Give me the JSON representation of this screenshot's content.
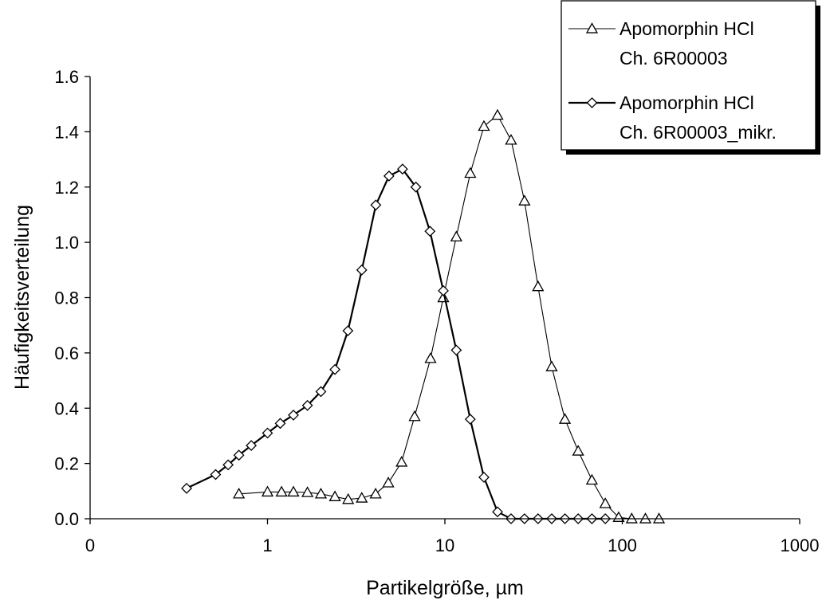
{
  "colors": {
    "series_line": "#000000",
    "marker_fill": "#ffffff",
    "axis": "#000000",
    "legend_shadow": "#000000"
  },
  "chart_data": {
    "type": "line",
    "title": "",
    "xlabel": "Partikelgröße, µm",
    "ylabel": "Häufigkeitsverteilung",
    "x_scale": "log",
    "xlim": [
      0.1,
      1000
    ],
    "ylim": [
      0,
      1.6
    ],
    "x_ticks": [
      0.1,
      1,
      10,
      100,
      1000
    ],
    "x_tick_labels": [
      "0",
      "1",
      "10",
      "100",
      "1000"
    ],
    "y_ticks": [
      0,
      0.2,
      0.4,
      0.6,
      0.8,
      1.0,
      1.2,
      1.4,
      1.6
    ],
    "y_tick_labels": [
      "0.0",
      "0.2",
      "0.4",
      "0.6",
      "0.8",
      "1.0",
      "1.2",
      "1.4",
      "1.6"
    ],
    "grid": false,
    "legend_position": "top-right",
    "series": [
      {
        "name": "Apomorphin HCl Ch. 6R00003",
        "legend_lines": [
          "Apomorphin HCl",
          "Ch. 6R00003"
        ],
        "marker": "triangle",
        "line_weight": "thin",
        "points": [
          [
            0.69,
            0.09
          ],
          [
            1.0,
            0.097
          ],
          [
            1.2,
            0.097
          ],
          [
            1.4,
            0.097
          ],
          [
            1.68,
            0.095
          ],
          [
            2.0,
            0.09
          ],
          [
            2.4,
            0.08
          ],
          [
            2.85,
            0.07
          ],
          [
            3.4,
            0.075
          ],
          [
            4.07,
            0.09
          ],
          [
            4.8,
            0.13
          ],
          [
            5.7,
            0.205
          ],
          [
            6.75,
            0.37
          ],
          [
            8.3,
            0.58
          ],
          [
            9.8,
            0.8
          ],
          [
            11.6,
            1.02
          ],
          [
            13.9,
            1.25
          ],
          [
            16.6,
            1.42
          ],
          [
            19.8,
            1.46
          ],
          [
            23.6,
            1.37
          ],
          [
            28.1,
            1.15
          ],
          [
            33.5,
            0.84
          ],
          [
            40.0,
            0.55
          ],
          [
            47.5,
            0.36
          ],
          [
            56.4,
            0.245
          ],
          [
            67.4,
            0.14
          ],
          [
            80.2,
            0.055
          ],
          [
            95.4,
            0.005
          ],
          [
            113.0,
            0.0
          ],
          [
            135.0,
            0.0
          ],
          [
            161.0,
            0.0
          ]
        ]
      },
      {
        "name": "Apomorphin HCl Ch. 6R00003_mikr.",
        "legend_lines": [
          "Apomorphin HCl",
          "Ch. 6R00003_mikr."
        ],
        "marker": "diamond",
        "line_weight": "thick",
        "points": [
          [
            0.35,
            0.11
          ],
          [
            0.51,
            0.16
          ],
          [
            0.6,
            0.195
          ],
          [
            0.69,
            0.23
          ],
          [
            0.81,
            0.265
          ],
          [
            1.0,
            0.31
          ],
          [
            1.18,
            0.345
          ],
          [
            1.4,
            0.375
          ],
          [
            1.68,
            0.41
          ],
          [
            2.0,
            0.46
          ],
          [
            2.4,
            0.54
          ],
          [
            2.84,
            0.68
          ],
          [
            3.4,
            0.9
          ],
          [
            4.08,
            1.135
          ],
          [
            4.84,
            1.24
          ],
          [
            5.77,
            1.265
          ],
          [
            6.86,
            1.2
          ],
          [
            8.24,
            1.04
          ],
          [
            9.8,
            0.825
          ],
          [
            11.6,
            0.61
          ],
          [
            13.9,
            0.36
          ],
          [
            16.6,
            0.15
          ],
          [
            19.8,
            0.025
          ],
          [
            23.6,
            0.0
          ],
          [
            28.1,
            0.0
          ],
          [
            33.5,
            0.0
          ],
          [
            40.0,
            0.0
          ],
          [
            47.5,
            0.0
          ],
          [
            56.4,
            0.0
          ],
          [
            67.4,
            0.0
          ],
          [
            80.2,
            0.0
          ]
        ]
      }
    ]
  }
}
